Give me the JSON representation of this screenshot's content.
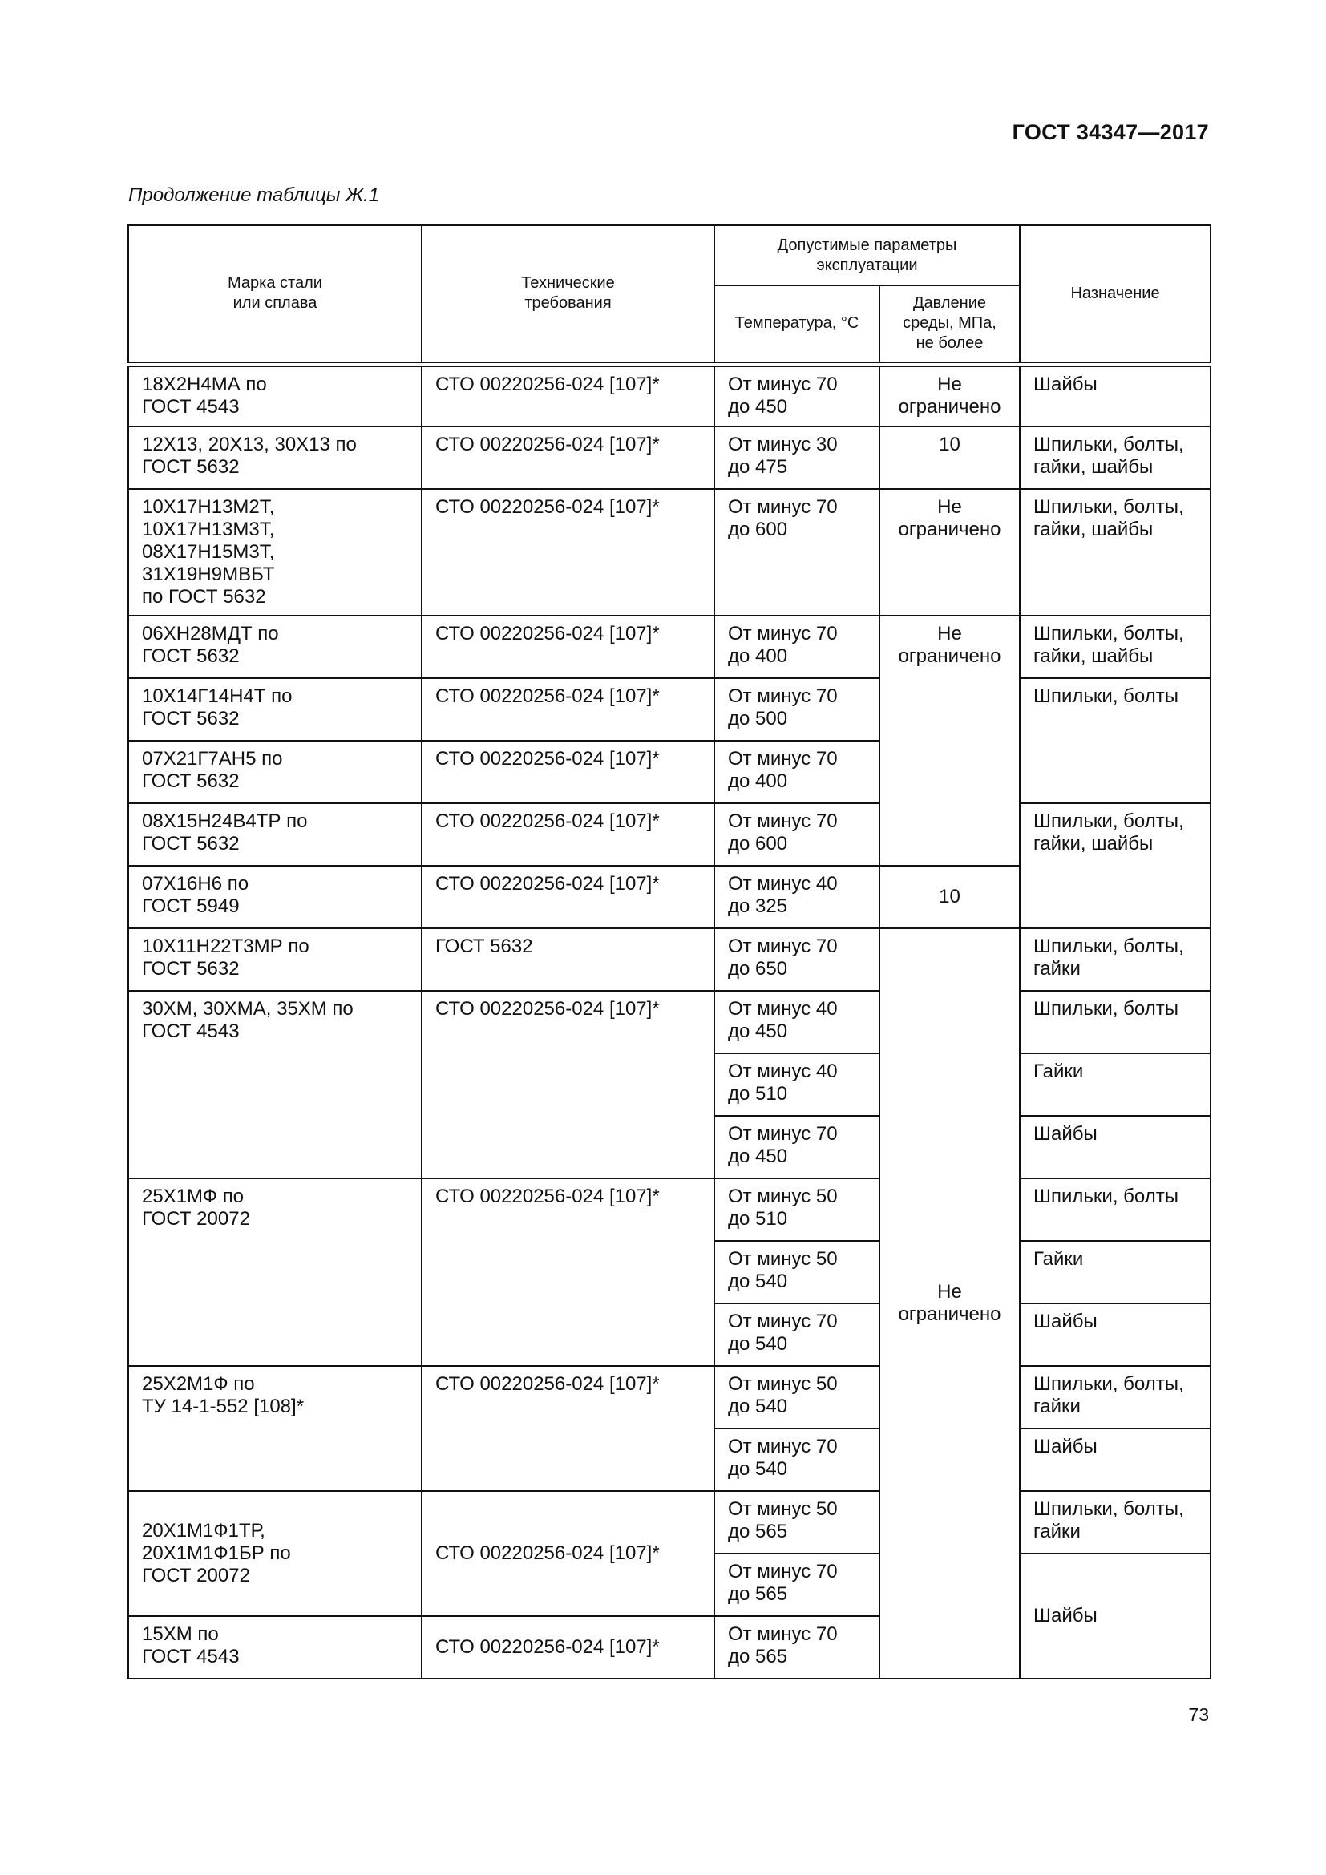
{
  "header": {
    "doc_id": "ГОСТ 34347—2017"
  },
  "caption": "Продолжение таблицы Ж.1",
  "page_number": "73",
  "table": {
    "columns": {
      "grade": "Марка стали\nили сплава",
      "tech": "Технические\nтребования",
      "params_group": "Допустимые параметры\nэксплуатации",
      "temp": "Температура, °С",
      "pressure": "Давление\nсреды, МПа,\nне более",
      "purpose": "Назначение"
    },
    "rows": [
      {
        "grade": "18Х2Н4МА по\nГОСТ 4543",
        "tech": "СТО 00220256-024 [107]*",
        "temp": "От минус 70\nдо 450",
        "pressure": "Не\nограничено",
        "purpose": "Шайбы"
      },
      {
        "grade": "12Х13, 20Х13, 30Х13 по\nГОСТ 5632",
        "tech": "СТО 00220256-024 [107]*",
        "temp": "От минус 30\nдо 475",
        "pressure": "10",
        "purpose": "Шпильки, болты,\nгайки, шайбы"
      },
      {
        "grade": "10Х17Н13М2Т,\n10Х17Н13М3Т,\n08Х17Н15М3Т,\n31Х19Н9МВБТ\nпо ГОСТ 5632",
        "tech": "СТО 00220256-024 [107]*",
        "temp": "От минус 70\nдо 600",
        "pressure": "Не\nограничено",
        "purpose": "Шпильки, болты,\nгайки, шайбы"
      },
      {
        "grade": "06ХН28МДТ по\nГОСТ 5632",
        "tech": "СТО 00220256-024 [107]*",
        "temp": "От минус 70\nдо 400",
        "pressure": "Не\nограничено",
        "purpose": "Шпильки, болты,\nгайки, шайбы"
      },
      {
        "grade": "10Х14Г14Н4Т по\nГОСТ 5632",
        "tech": "СТО 00220256-024 [107]*",
        "temp": "От минус 70\nдо 500",
        "purpose": "Шпильки, болты"
      },
      {
        "grade": "07Х21Г7АН5 по\nГОСТ 5632",
        "tech": "СТО 00220256-024 [107]*",
        "temp": "От минус 70\nдо 400"
      },
      {
        "grade": "08Х15Н24В4ТР по\nГОСТ 5632",
        "tech": "СТО 00220256-024 [107]*",
        "temp": "От минус 70\nдо 600",
        "purpose": "Шпильки, болты,\nгайки, шайбы"
      },
      {
        "grade": "07Х16Н6 по\nГОСТ 5949",
        "tech": "СТО 00220256-024 [107]*",
        "temp": "От минус 40\nдо 325",
        "pressure": "10"
      },
      {
        "grade": "10Х11Н22Т3МР по\nГОСТ 5632",
        "tech": "ГОСТ 5632",
        "temp": "От минус 70\nдо 650",
        "pressure": "Не\nограничено",
        "purpose": "Шпильки, болты,\nгайки"
      },
      {
        "grade": "30ХМ, 30ХМА, 35ХМ по\nГОСТ 4543",
        "tech": "СТО 00220256-024 [107]*",
        "temp": "От минус 40\nдо 450",
        "purpose": "Шпильки, болты"
      },
      {
        "temp": "От минус 40\nдо 510",
        "purpose": "Гайки"
      },
      {
        "temp": "От минус 70\nдо 450",
        "purpose": "Шайбы"
      },
      {
        "grade": "25Х1МФ по\nГОСТ 20072",
        "tech": "СТО 00220256-024 [107]*",
        "temp": "От минус 50\nдо 510",
        "purpose": "Шпильки, болты"
      },
      {
        "temp": "От минус 50\nдо 540",
        "purpose": "Гайки"
      },
      {
        "temp": "От минус 70\nдо 540",
        "purpose": "Шайбы"
      },
      {
        "grade": "25Х2М1Ф по\nТУ 14-1-552 [108]*",
        "tech": "СТО 00220256-024 [107]*",
        "temp": "От минус 50\nдо 540",
        "purpose": "Шпильки, болты,\nгайки"
      },
      {
        "temp": "От минус 70\nдо 540",
        "purpose": "Шайбы"
      },
      {
        "grade": "20Х1М1Ф1ТР,\n20Х1М1Ф1БР по\nГОСТ 20072",
        "tech": "СТО 00220256-024 [107]*",
        "temp": "От минус 50\nдо 565",
        "purpose": "Шпильки, болты,\nгайки"
      },
      {
        "temp": "От минус 70\nдо 565",
        "purpose": "Шайбы"
      },
      {
        "grade": "15ХМ по\nГОСТ 4543",
        "tech": "СТО 00220256-024 [107]*",
        "temp": "От минус 70\nдо 565"
      }
    ]
  }
}
